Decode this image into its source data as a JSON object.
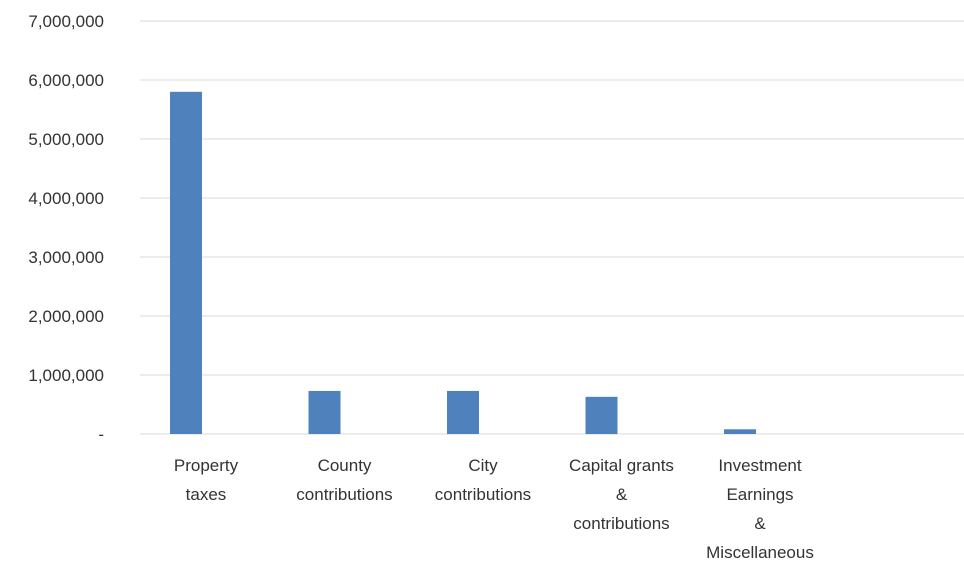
{
  "chart_data": {
    "type": "bar",
    "title": "",
    "xlabel": "",
    "ylabel": "",
    "categories": [
      "Property taxes",
      "County contributions",
      "City contributions",
      "Capital grants & contributions",
      "Investment Earnings & Miscellaneous"
    ],
    "category_label_lines": [
      [
        "Property",
        "taxes"
      ],
      [
        "County",
        "contributions"
      ],
      [
        "City",
        "contributions"
      ],
      [
        "Capital grants",
        "&",
        "contributions"
      ],
      [
        "Investment",
        "Earnings",
        "&",
        "Miscellaneous"
      ]
    ],
    "values": [
      5800000,
      730000,
      730000,
      630000,
      80000
    ],
    "ylim": [
      0,
      7000000
    ],
    "y_ticks": [
      0,
      1000000,
      2000000,
      3000000,
      4000000,
      5000000,
      6000000,
      7000000
    ],
    "y_tick_labels": [
      "-",
      "1,000,000",
      "2,000,000",
      "3,000,000",
      "4,000,000",
      "5,000,000",
      "6,000,000",
      "7,000,000"
    ],
    "grid": true,
    "legend": "none",
    "bar_color": "#4F81BD",
    "grid_color": "#D9D9D9"
  }
}
